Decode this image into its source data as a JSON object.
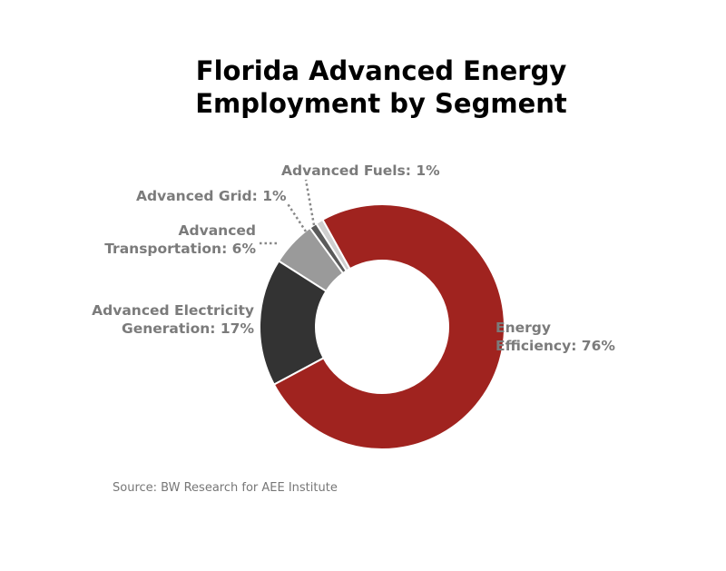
{
  "chart_data": {
    "type": "pie",
    "title": "Florida Advanced Energy Employment by Segment",
    "title_lines": [
      "Florida Advanced Energy",
      "Employment by Segment"
    ],
    "slices": [
      {
        "name": "Energy Efficiency",
        "value": 76,
        "label_lines": [
          "Energy",
          "Efficiency: 76%"
        ],
        "color": "#a0231f"
      },
      {
        "name": "Advanced Electricity Generation",
        "value": 17,
        "label_lines": [
          "Advanced Electricity",
          "Generation: 17%"
        ],
        "color": "#333333"
      },
      {
        "name": "Advanced Transportation",
        "value": 6,
        "label_lines": [
          "Advanced",
          "Transportation: 6%"
        ],
        "color": "#9a9a9a"
      },
      {
        "name": "Advanced Grid",
        "value": 1,
        "label_lines": [
          "Advanced Grid: 1%"
        ],
        "color": "#5a5a5a"
      },
      {
        "name": "Advanced Fuels",
        "value": 1,
        "label_lines": [
          "Advanced Fuels: 1%"
        ],
        "color": "#cfcfcf"
      }
    ],
    "source": "Source: BW Research for AEE Institute"
  }
}
